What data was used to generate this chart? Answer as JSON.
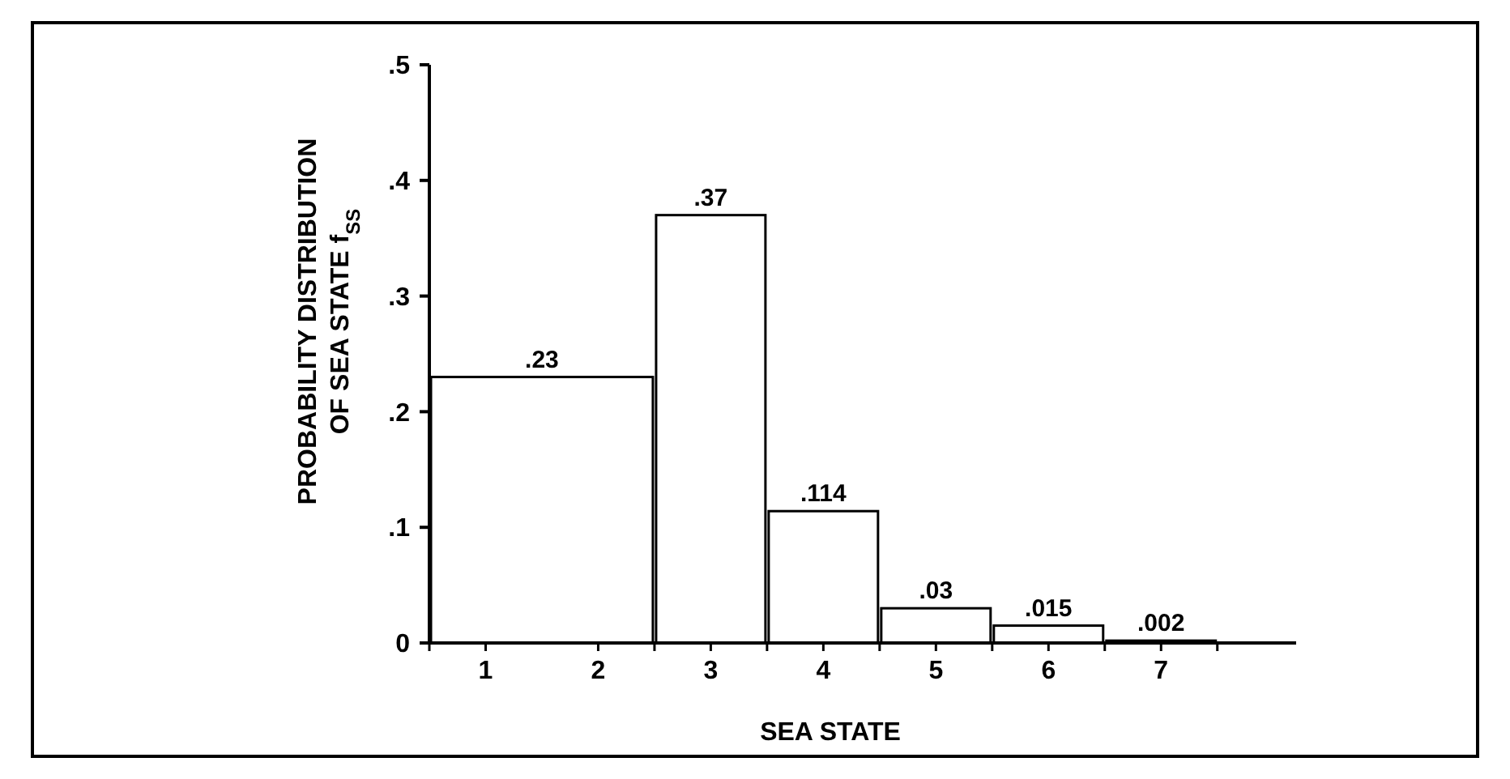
{
  "chart_data": {
    "type": "histogram",
    "xlabel": "SEA STATE",
    "ylabel": "PROBABILITY DISTRIBUTION\nOF SEA STATE f$_{SS}$",
    "bins": [
      0.5,
      2.5,
      3.5,
      4.5,
      5.5,
      6.5,
      7.5
    ],
    "values": [
      0.23,
      0.37,
      0.114,
      0.03,
      0.015,
      0.002
    ],
    "value_labels": [
      ".23",
      ".37",
      ".114",
      ".03",
      ".015",
      ".002"
    ],
    "color": "#ffffff",
    "xlim": [
      0.5,
      8.2
    ],
    "xticks": [
      {
        "value": 0.5,
        "label": null
      },
      1,
      2,
      {
        "value": 2.5,
        "label": null
      },
      3,
      {
        "value": 3.5,
        "label": null
      },
      4,
      {
        "value": 4.5,
        "label": null
      },
      5,
      {
        "value": 5.5,
        "label": null
      },
      6,
      {
        "value": 6.5,
        "label": null
      },
      7,
      {
        "value": 7.5,
        "label": null
      }
    ],
    "ylim": [
      0,
      0.5
    ],
    "yticks": [
      0,
      {
        "value": 0.1,
        "label": ".1"
      },
      {
        "value": 0.2,
        "label": ".2"
      },
      {
        "value": 0.3,
        "label": ".3"
      },
      {
        "value": 0.4,
        "label": ".4"
      },
      {
        "value": 0.5,
        "label": ".5"
      }
    ],
    "grid": false
  }
}
